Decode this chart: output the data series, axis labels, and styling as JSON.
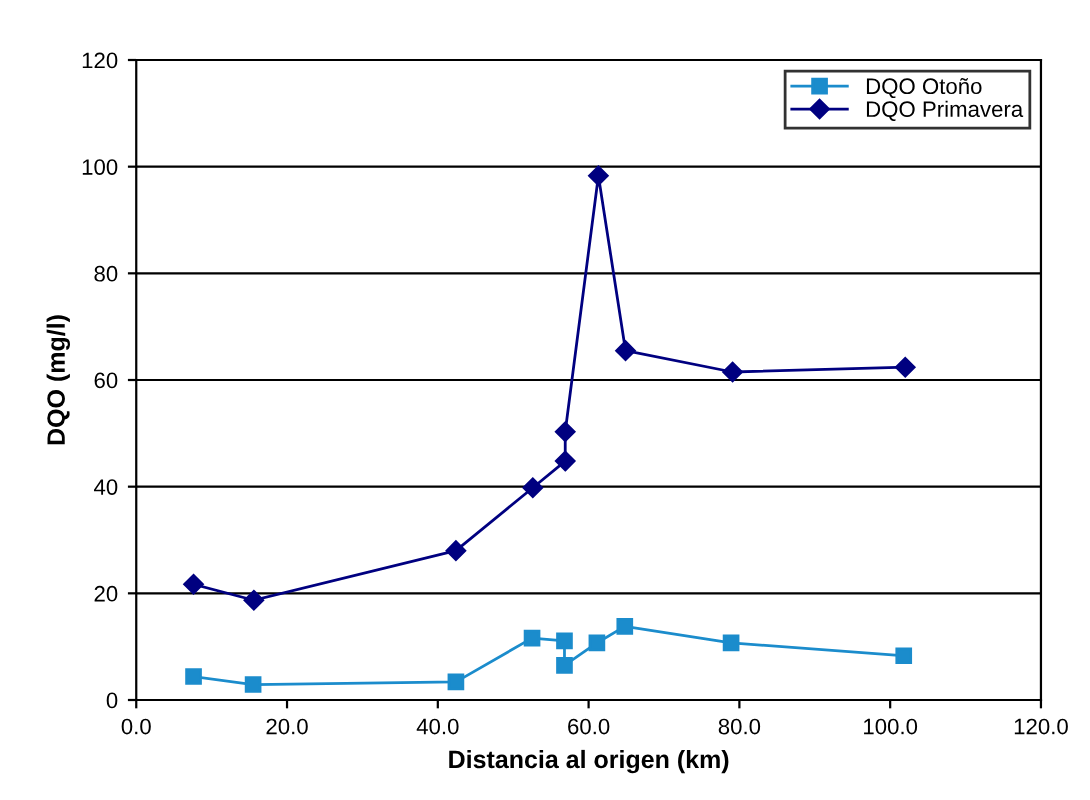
{
  "chart_data": {
    "type": "line",
    "xlabel": "Distancia al origen (km)",
    "ylabel": "DQO (mg/l)",
    "xlim": [
      0,
      120
    ],
    "xticks": [
      {
        "value": 0,
        "label": "0.0"
      },
      {
        "value": 20,
        "label": "20.0"
      },
      {
        "value": 40,
        "label": "40.0"
      },
      {
        "value": 60,
        "label": "60.0"
      },
      {
        "value": 80,
        "label": "80.0"
      },
      {
        "value": 100,
        "label": "100.0"
      },
      {
        "value": 120,
        "label": "120.0"
      }
    ],
    "ylim": [
      0,
      120
    ],
    "yticks": [
      0,
      20,
      40,
      60,
      80,
      100,
      120
    ],
    "grid": "y",
    "legend": "top right",
    "series": [
      {
        "name": "DQO Otoño",
        "color": "#1b8ccc",
        "marker": "square",
        "x": [
          7.6,
          15.5,
          42.4,
          52.5,
          56.8,
          56.8,
          61.1,
          64.8,
          78.9,
          101.8
        ],
        "values": [
          4.4,
          2.9,
          3.4,
          11.6,
          11.1,
          6.5,
          10.7,
          13.8,
          10.7,
          8.3
        ]
      },
      {
        "name": "DQO Primavera",
        "color": "#000080",
        "marker": "diamond",
        "x": [
          7.6,
          15.6,
          42.4,
          52.6,
          56.9,
          56.9,
          61.3,
          64.9,
          79.1,
          102.0
        ],
        "values": [
          21.7,
          18.7,
          28.0,
          39.8,
          44.8,
          50.3,
          98.3,
          65.5,
          61.5,
          62.4
        ]
      }
    ]
  }
}
